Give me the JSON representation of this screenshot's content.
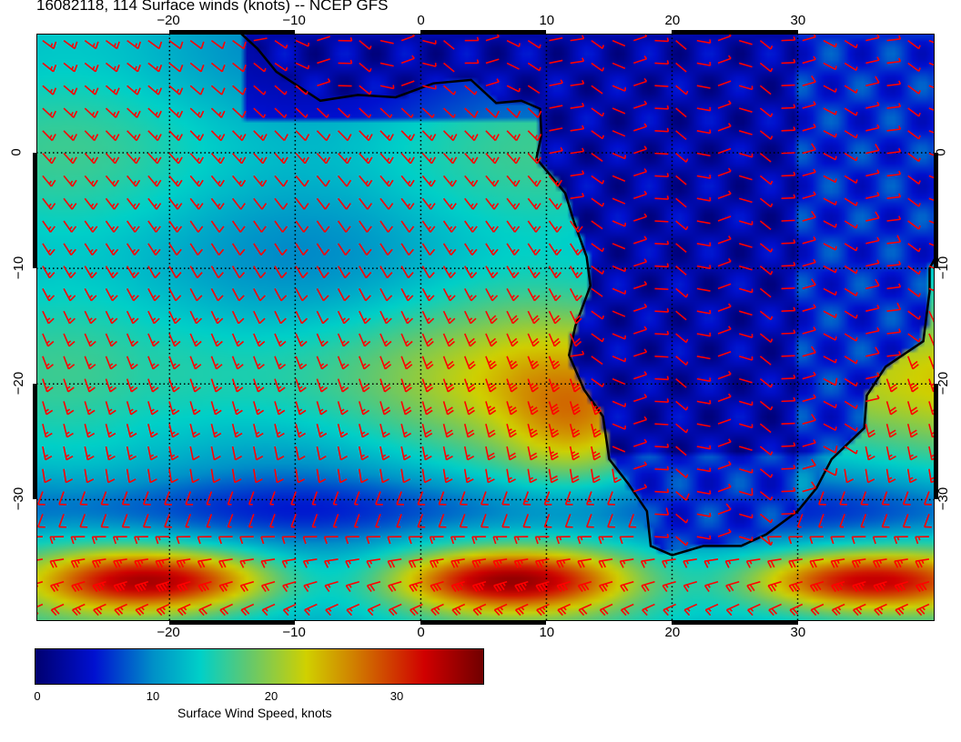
{
  "title": "16082118, 114 Surface winds (knots) -- NCEP GFS",
  "chart_data": {
    "type": "heatmap",
    "title": "16082118, 114 Surface winds (knots) -- NCEP GFS",
    "lon_range": [
      -30.6,
      40.9
    ],
    "lat_range": [
      -40.5,
      10.3
    ],
    "lon_ticks": [
      "−20",
      "−10",
      "0",
      "10",
      "20",
      "30"
    ],
    "lat_ticks": [
      "0",
      "−10",
      "−20",
      "−30"
    ],
    "grid": true,
    "colorbar": {
      "label": "Surface Wind Speed, knots",
      "range": [
        0,
        38
      ],
      "ticks": [
        "0",
        "10",
        "20",
        "30"
      ],
      "colormap": [
        "#000070",
        "#0010d0",
        "#0090c8",
        "#00d0c8",
        "#60c870",
        "#d0d000",
        "#d08000",
        "#d00000",
        "#700000"
      ]
    },
    "barb_color": "#ff0000",
    "coastline_color": "#000000"
  }
}
